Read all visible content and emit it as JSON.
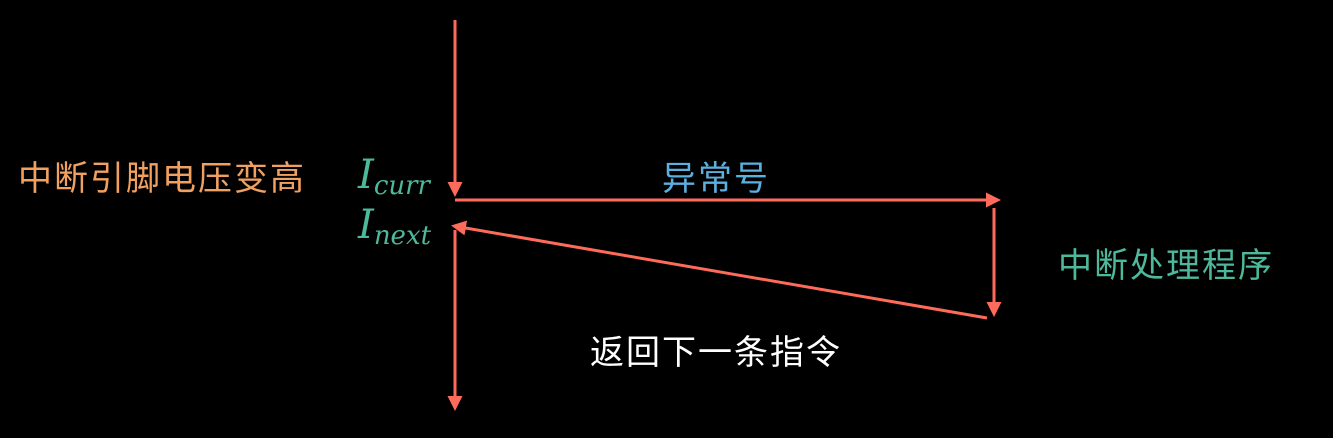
{
  "labels": {
    "interrupt_pin": "中断引脚电压变高",
    "exception_number": "异常号",
    "handler": "中断处理程序",
    "return_next": "返回下一条指令"
  },
  "math": {
    "current": {
      "symbol": "I",
      "subscript": "curr"
    },
    "next": {
      "symbol": "I",
      "subscript": "next"
    }
  },
  "colors": {
    "arrow": "#FF6B5A",
    "interrupt_pin": "#F0A060",
    "exception_number": "#5BB0E0",
    "handler": "#4DB89A",
    "math": "#4DB89A",
    "return_next": "#FFFFFF",
    "background": "#000000"
  }
}
